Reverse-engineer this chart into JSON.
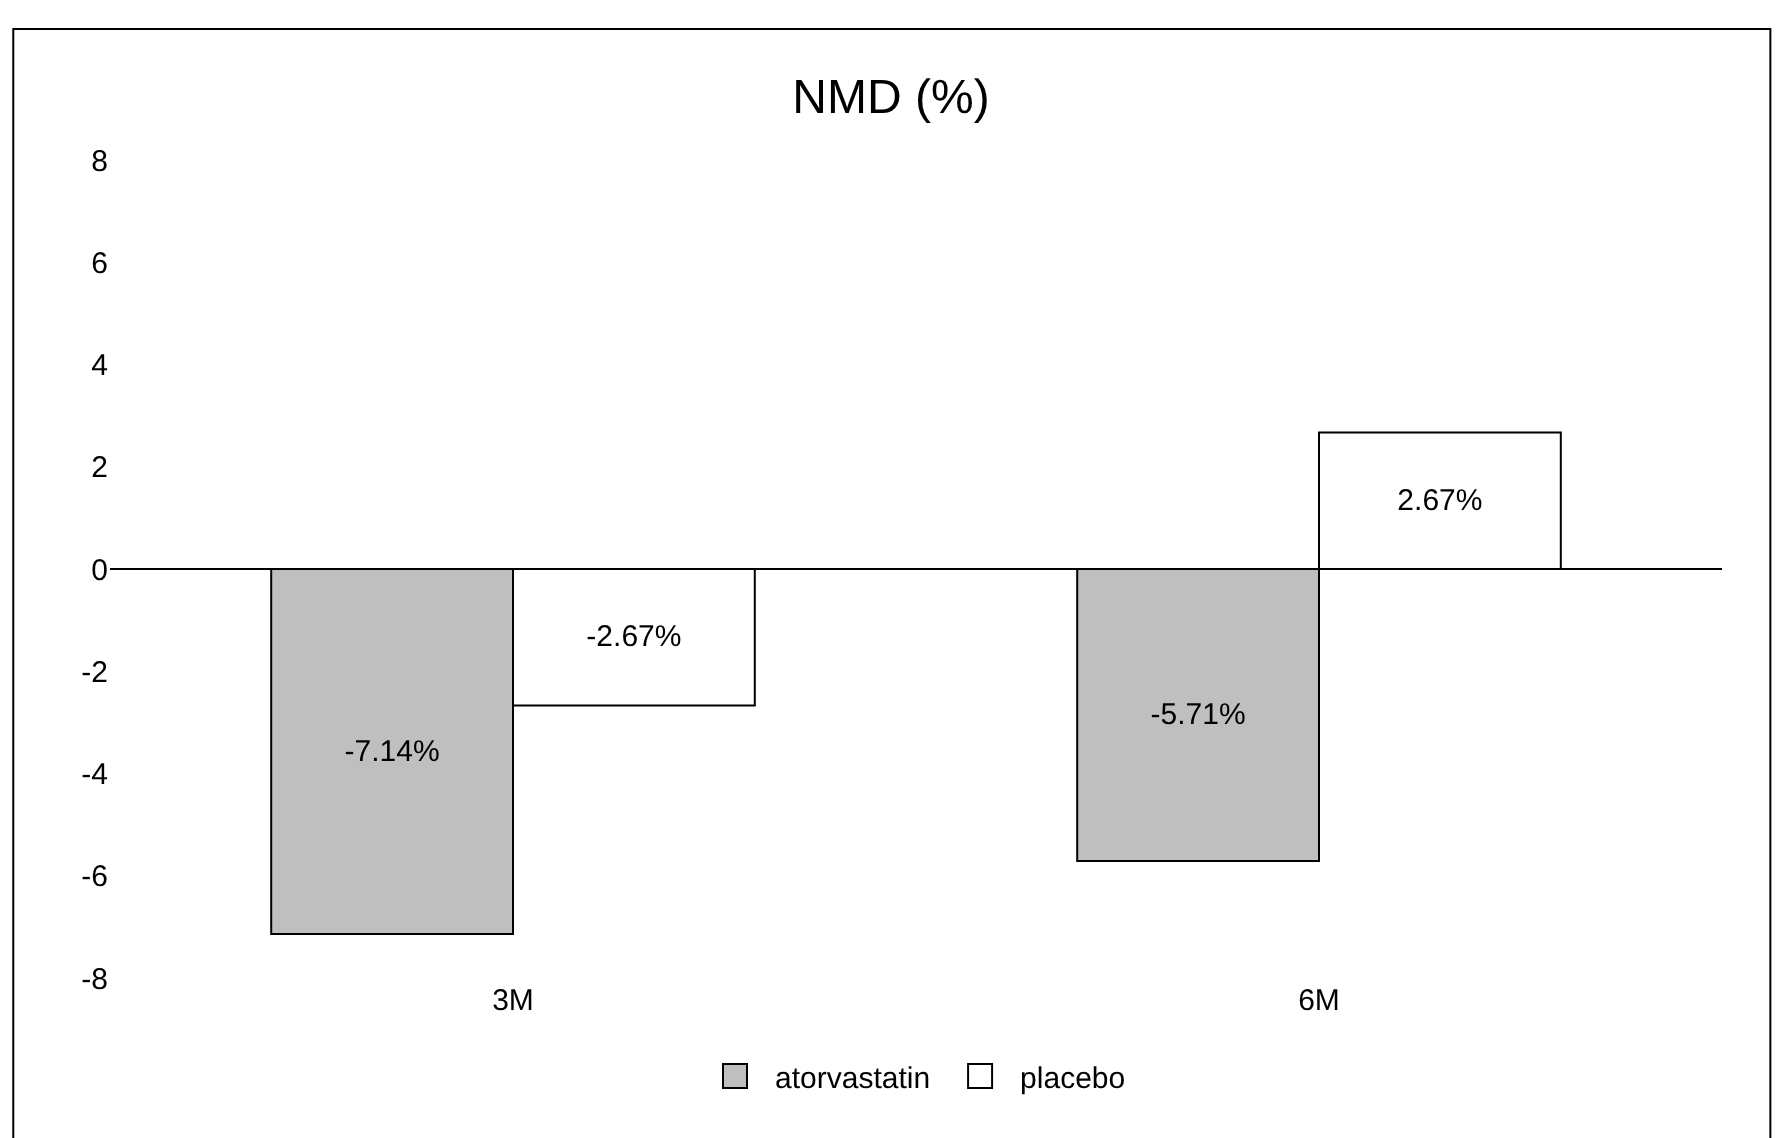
{
  "chart_data": {
    "type": "bar",
    "title": "NMD (%)",
    "categories": [
      "3M",
      "6M"
    ],
    "series": [
      {
        "name": "atorvastatin",
        "color": "#bfbfbf",
        "values": [
          -7.14,
          -5.71
        ],
        "value_labels": [
          "-7.14%",
          "-5.71%"
        ]
      },
      {
        "name": "placebo",
        "color": "#ffffff",
        "values": [
          -2.67,
          2.67
        ],
        "value_labels": [
          "-2.67%",
          "2.67%"
        ]
      }
    ],
    "ylim": [
      -8,
      8
    ],
    "ref_lines": [
      {
        "axis": "y",
        "value": 0,
        "color": "#000000"
      }
    ],
    "yticks": [
      -8,
      -6,
      -4,
      -2,
      0,
      2,
      4,
      6,
      8
    ],
    "legend": "bottom"
  }
}
